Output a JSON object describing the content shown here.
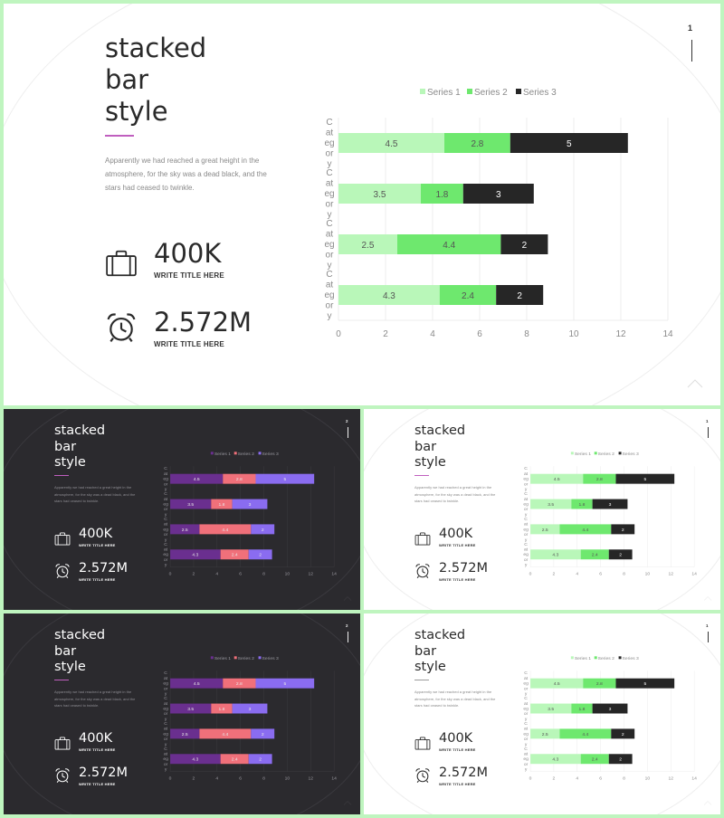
{
  "slides": [
    {
      "title": "stacked\nbar\nstyle",
      "paragraph": "Apparently we had reached a great height in the atmosphere, for the sky was a dead black, and the stars had ceased to twinkle.",
      "stats": [
        {
          "value": "400K",
          "label": "WRITE TITLE HERE",
          "icon": "briefcase-icon"
        },
        {
          "value": "2.572M",
          "label": "WRITE TITLE HERE",
          "icon": "alarm-clock-icon"
        }
      ],
      "page_number": "1",
      "colors": {
        "accent": "#c05fbf",
        "series": [
          "#b9f7b9",
          "#6ee86e",
          "#262626"
        ]
      },
      "chart_data": {
        "type": "bar",
        "orientation": "horizontal",
        "stacked": true,
        "categories": [
          "Category",
          "Category",
          "Category",
          "Category"
        ],
        "series": [
          {
            "name": "Series 1",
            "values": [
              4.5,
              3.5,
              2.5,
              4.3
            ]
          },
          {
            "name": "Series 2",
            "values": [
              2.8,
              1.8,
              4.4,
              2.4
            ]
          },
          {
            "name": "Series 3",
            "values": [
              5,
              3,
              2,
              2
            ]
          }
        ],
        "xlim": [
          0,
          14
        ],
        "xticks": [
          "0",
          "2",
          "4",
          "6",
          "8",
          "10",
          "12",
          "14"
        ],
        "legend": "top",
        "grid": true
      }
    },
    {
      "title": "stacked\nbar\nstyle",
      "paragraph": "Apparently we had reached a great height in the atmosphere, for the sky was a dead black, and the stars had ceased to twinkle.",
      "stats": [
        {
          "value": "400K",
          "label": "WRITE TITLE HERE",
          "icon": "briefcase-icon"
        },
        {
          "value": "2.572M",
          "label": "WRITE TITLE HERE",
          "icon": "alarm-clock-icon"
        }
      ],
      "page_number": "2",
      "colors": {
        "accent": "#c05fbf",
        "series": [
          "#6a2f8f",
          "#f0707a",
          "#8a6cf0"
        ]
      },
      "chart_data": {
        "type": "bar",
        "orientation": "horizontal",
        "stacked": true,
        "categories": [
          "Category",
          "Category",
          "Category",
          "Category"
        ],
        "series": [
          {
            "name": "Series 1",
            "values": [
              4.5,
              3.5,
              2.5,
              4.3
            ]
          },
          {
            "name": "Series 2",
            "values": [
              2.8,
              1.8,
              4.4,
              2.4
            ]
          },
          {
            "name": "Series 3",
            "values": [
              5,
              3,
              2,
              2
            ]
          }
        ],
        "xlim": [
          0,
          14
        ],
        "xticks": [
          "0",
          "2",
          "4",
          "6",
          "8",
          "10",
          "12",
          "14"
        ],
        "legend": "top",
        "grid": true
      }
    },
    {
      "title": "stacked\nbar\nstyle",
      "paragraph": "Apparently we had reached a great height in the atmosphere, for the sky was a dead black, and the stars had ceased to twinkle.",
      "stats": [
        {
          "value": "400K",
          "label": "WRITE TITLE HERE",
          "icon": "briefcase-icon"
        },
        {
          "value": "2.572M",
          "label": "WRITE TITLE HERE",
          "icon": "alarm-clock-icon"
        }
      ],
      "page_number": "1",
      "colors": {
        "accent": "#c05fbf",
        "series": [
          "#b9f7b9",
          "#6ee86e",
          "#262626"
        ]
      },
      "chart_data": {
        "type": "bar",
        "orientation": "horizontal",
        "stacked": true,
        "categories": [
          "Category",
          "Category",
          "Category",
          "Category"
        ],
        "series": [
          {
            "name": "Series 1",
            "values": [
              4.5,
              3.5,
              2.5,
              4.3
            ]
          },
          {
            "name": "Series 2",
            "values": [
              2.8,
              1.8,
              4.4,
              2.4
            ]
          },
          {
            "name": "Series 3",
            "values": [
              5,
              3,
              2,
              2
            ]
          }
        ],
        "xlim": [
          0,
          14
        ],
        "xticks": [
          "0",
          "2",
          "4",
          "6",
          "8",
          "10",
          "12",
          "14"
        ],
        "legend": "top",
        "grid": true
      }
    },
    {
      "title": "stacked\nbar\nstyle",
      "paragraph": "Apparently we had reached a great height in the atmosphere, for the sky was a dead black, and the stars had ceased to twinkle.",
      "stats": [
        {
          "value": "400K",
          "label": "WRITE TITLE HERE",
          "icon": "briefcase-icon"
        },
        {
          "value": "2.572M",
          "label": "WRITE TITLE HERE",
          "icon": "alarm-clock-icon"
        }
      ],
      "page_number": "2",
      "colors": {
        "accent": "#c05fbf",
        "series": [
          "#6a2f8f",
          "#f0707a",
          "#8a6cf0"
        ]
      },
      "chart_data": {
        "type": "bar",
        "orientation": "horizontal",
        "stacked": true,
        "categories": [
          "Category",
          "Category",
          "Category",
          "Category"
        ],
        "series": [
          {
            "name": "Series 1",
            "values": [
              4.5,
              3.5,
              2.5,
              4.3
            ]
          },
          {
            "name": "Series 2",
            "values": [
              2.8,
              1.8,
              4.4,
              2.4
            ]
          },
          {
            "name": "Series 3",
            "values": [
              5,
              3,
              2,
              2
            ]
          }
        ],
        "xlim": [
          0,
          14
        ],
        "xticks": [
          "0",
          "2",
          "4",
          "6",
          "8",
          "10",
          "12",
          "14"
        ],
        "legend": "top",
        "grid": true
      }
    },
    {
      "title": "stacked\nbar\nstyle",
      "paragraph": "Apparently we had reached a great height in the atmosphere, for the sky was a dead black, and the stars had ceased to twinkle.",
      "stats": [
        {
          "value": "400K",
          "label": "WRITE TITLE HERE",
          "icon": "briefcase-icon"
        },
        {
          "value": "2.572M",
          "label": "WRITE TITLE HERE",
          "icon": "alarm-clock-icon"
        }
      ],
      "page_number": "1",
      "colors": {
        "accent": "#9a9a9a",
        "series": [
          "#b9f7b9",
          "#6ee86e",
          "#262626"
        ]
      },
      "chart_data": {
        "type": "bar",
        "orientation": "horizontal",
        "stacked": true,
        "categories": [
          "Category",
          "Category",
          "Category",
          "Category"
        ],
        "series": [
          {
            "name": "Series 1",
            "values": [
              4.5,
              3.5,
              2.5,
              4.3
            ]
          },
          {
            "name": "Series 2",
            "values": [
              2.8,
              1.8,
              4.4,
              2.4
            ]
          },
          {
            "name": "Series 3",
            "values": [
              5,
              3,
              2,
              2
            ]
          }
        ],
        "xlim": [
          0,
          14
        ],
        "xticks": [
          "0",
          "2",
          "4",
          "6",
          "8",
          "10",
          "12",
          "14"
        ],
        "legend": "top",
        "grid": true
      }
    }
  ]
}
